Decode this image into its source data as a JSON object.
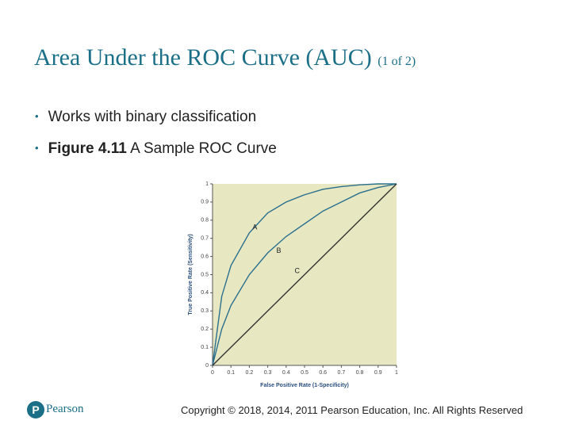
{
  "header": {
    "title": "Area Under the ROC Curve (AUC)",
    "subtitle": "(1 of 2)"
  },
  "bullets": [
    {
      "text": "Works with binary classification"
    },
    {
      "bold": "Figure 4.11",
      "text": "A Sample ROC Curve"
    }
  ],
  "chart_data": {
    "type": "line",
    "x_label": "False Positive Rate (1-Specificity)",
    "y_label": "True Positive Rate (Sensitivity)",
    "x": [
      0,
      0.05,
      0.1,
      0.2,
      0.3,
      0.4,
      0.5,
      0.6,
      0.7,
      0.8,
      0.9,
      1
    ],
    "series": [
      {
        "name": "A",
        "color": "#2b6f8e",
        "values": [
          0,
          0.38,
          0.55,
          0.73,
          0.84,
          0.9,
          0.94,
          0.97,
          0.985,
          0.995,
          1,
          1
        ]
      },
      {
        "name": "B",
        "color": "#2b6f8e",
        "values": [
          0,
          0.2,
          0.33,
          0.5,
          0.62,
          0.71,
          0.78,
          0.85,
          0.9,
          0.95,
          0.98,
          1
        ]
      },
      {
        "name": "C",
        "color": "#333333",
        "values": [
          0,
          0.05,
          0.1,
          0.2,
          0.3,
          0.4,
          0.5,
          0.6,
          0.7,
          0.8,
          0.9,
          1
        ]
      }
    ],
    "xlim": [
      0,
      1
    ],
    "ylim": [
      0,
      1
    ],
    "xticks": [
      0,
      0.1,
      0.2,
      0.3,
      0.4,
      0.5,
      0.6,
      0.7,
      0.8,
      0.9,
      1
    ],
    "yticks": [
      0,
      0.1,
      0.2,
      0.3,
      0.4,
      0.5,
      0.6,
      0.7,
      0.8,
      0.9,
      1
    ],
    "background": "#e7e8c2"
  },
  "footer": {
    "brand": "Pearson",
    "copyright": "Copyright © 2018, 2014, 2011 Pearson Education, Inc. All Rights Reserved"
  }
}
